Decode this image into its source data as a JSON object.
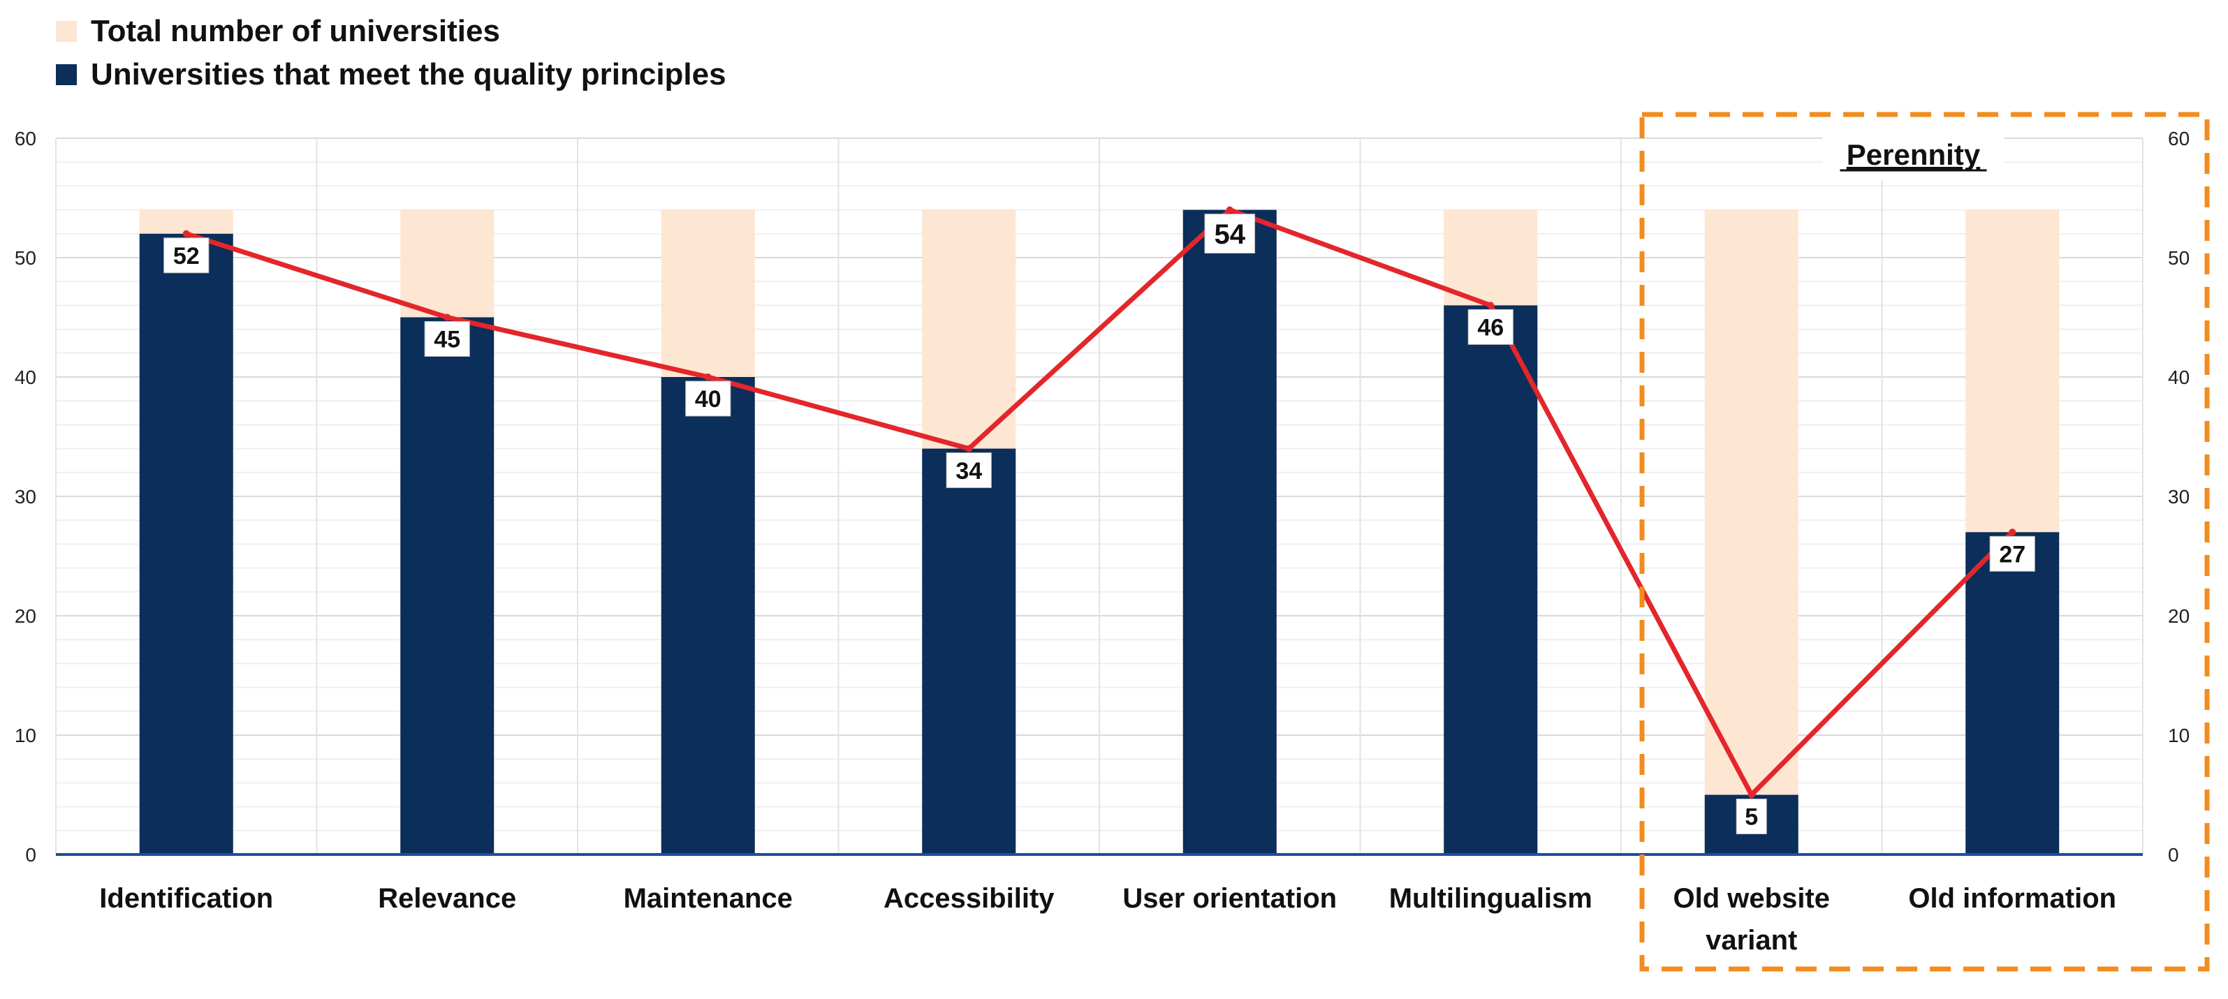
{
  "chart_data": {
    "type": "bar",
    "categories": [
      "Identification",
      "Relevance",
      "Maintenance",
      "Accessibility",
      "User orientation",
      "Multilingualism",
      "Old website variant",
      "Old information"
    ],
    "series": [
      {
        "name": "Total number of universities",
        "values": [
          54,
          54,
          54,
          54,
          54,
          54,
          54,
          54
        ],
        "color": "#fde6d2"
      },
      {
        "name": "Universities that meet the quality principles",
        "values": [
          52,
          45,
          40,
          34,
          54,
          46,
          5,
          27
        ],
        "color": "#0b2e5a"
      }
    ],
    "line_series": {
      "values": [
        52,
        45,
        40,
        34,
        54,
        46,
        5,
        27
      ],
      "color": "#e3262b"
    },
    "data_labels": [
      "52",
      "45",
      "40",
      "34",
      "54",
      "46",
      "5",
      "27"
    ],
    "y_ticks": [
      0,
      10,
      20,
      30,
      40,
      50,
      60
    ],
    "ylim": [
      0,
      60
    ],
    "y_axis_left": true,
    "y_axis_right": true,
    "highlight_box": {
      "label": "Perennity",
      "categories": [
        "Old website variant",
        "Old information"
      ],
      "color": "#f28c1e"
    },
    "legend_position": "top-left",
    "grid": true
  }
}
